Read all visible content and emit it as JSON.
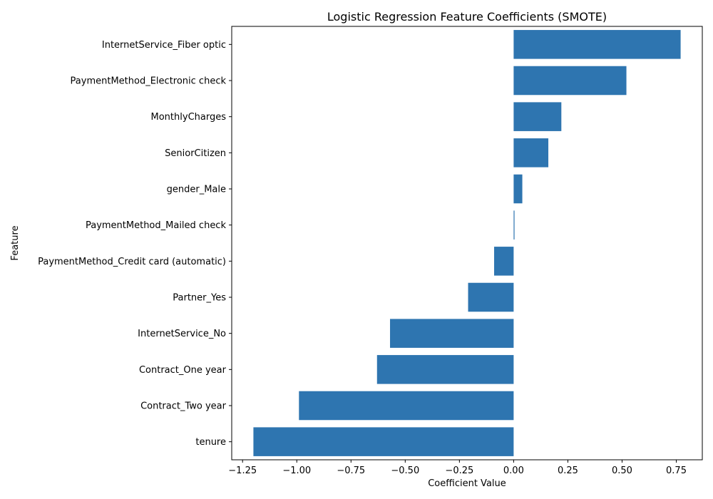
{
  "chart_data": {
    "type": "bar",
    "orientation": "horizontal",
    "title": "Logistic Regression Feature Coefficients (SMOTE)",
    "xlabel": "Coefficient Value",
    "ylabel": "Feature",
    "categories": [
      "InternetService_Fiber optic",
      "PaymentMethod_Electronic check",
      "MonthlyCharges",
      "SeniorCitizen",
      "gender_Male",
      "PaymentMethod_Mailed check",
      "PaymentMethod_Credit card (automatic)",
      "Partner_Yes",
      "InternetService_No",
      "Contract_One year",
      "Contract_Two year",
      "tenure"
    ],
    "values": [
      0.77,
      0.52,
      0.22,
      0.16,
      0.04,
      0.004,
      -0.09,
      -0.21,
      -0.57,
      -0.63,
      -0.99,
      -1.2
    ],
    "xlim": [
      -1.3,
      0.87
    ],
    "xticks": [
      -1.25,
      -1.0,
      -0.75,
      -0.5,
      -0.25,
      0.0,
      0.25,
      0.5,
      0.75
    ],
    "xtick_labels": [
      "−1.25",
      "−1.00",
      "−0.75",
      "−0.50",
      "−0.25",
      "0.00",
      "0.25",
      "0.50",
      "0.75"
    ],
    "bar_color": "#2e75b0",
    "grid": false,
    "legend": "none"
  }
}
